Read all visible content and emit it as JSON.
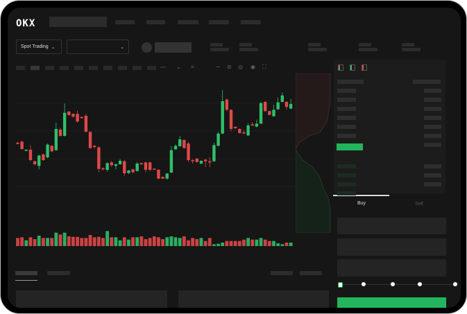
{
  "brand": {
    "logo": "OKX"
  },
  "market_selector": {
    "label": "Spot Trading",
    "value": ""
  },
  "order_form": {
    "tabs": [
      {
        "label": "Buy",
        "active": true
      },
      {
        "label": "Sell",
        "active": false
      }
    ],
    "leverage_slider": {
      "value": 0,
      "steps": 5
    },
    "buy_color": "#22b55e"
  },
  "colors": {
    "up": "#2fbf6a",
    "down": "#e04848",
    "background": "#161616"
  },
  "toolbar_icons": [
    "indicator-icon",
    "chart-type-icon",
    "drawing-icon",
    "pen-icon",
    "camera-icon",
    "settings-icon",
    "fullscreen-icon"
  ],
  "orderbook_icons": [
    "book-both-icon",
    "book-bids-icon",
    "book-asks-icon"
  ],
  "chart_data": {
    "type": "candlestick",
    "title": "",
    "xlabel": "",
    "ylabel": "",
    "ohlc": [
      [
        255,
        250,
        262,
        260
      ],
      [
        250,
        246,
        285,
        282
      ],
      [
        290,
        283,
        291,
        285
      ],
      [
        285,
        265,
        335,
        330
      ],
      [
        335,
        332,
        352,
        348
      ],
      [
        355,
        308,
        370,
        310
      ],
      [
        305,
        302,
        333,
        330
      ],
      [
        318,
        258,
        322,
        263
      ],
      [
        268,
        265,
        297,
        292
      ],
      [
        287,
        168,
        290,
        195
      ],
      [
        198,
        190,
        228,
        225
      ],
      [
        225,
        85,
        228,
        125
      ],
      [
        120,
        117,
        137,
        135
      ],
      [
        130,
        127,
        146,
        142
      ],
      [
        130,
        115,
        168,
        163
      ],
      [
        143,
        141,
        150,
        148
      ],
      [
        138,
        130,
        210,
        207
      ],
      [
        208,
        205,
        280,
        278
      ],
      [
        268,
        265,
        280,
        273
      ],
      [
        275,
        270,
        382,
        368
      ],
      [
        365,
        362,
        375,
        370
      ],
      [
        372,
        340,
        380,
        343
      ],
      [
        340,
        333,
        360,
        352
      ],
      [
        355,
        345,
        370,
        348
      ],
      [
        348,
        325,
        350,
        333
      ],
      [
        335,
        330,
        398,
        387
      ],
      [
        386,
        372,
        390,
        375
      ],
      [
        370,
        367,
        388,
        382
      ],
      [
        377,
        338,
        380,
        345
      ],
      [
        343,
        341,
        350,
        348
      ],
      [
        340,
        337,
        382,
        372
      ],
      [
        340,
        336,
        378,
        372
      ],
      [
        367,
        365,
        372,
        370
      ],
      [
        372,
        369,
        412,
        410
      ],
      [
        403,
        400,
        412,
        410
      ],
      [
        410,
        386,
        414,
        388
      ],
      [
        384,
        270,
        386,
        287
      ],
      [
        283,
        262,
        285,
        268
      ],
      [
        270,
        225,
        272,
        240
      ],
      [
        243,
        240,
        280,
        278
      ],
      [
        258,
        250,
        338,
        330
      ],
      [
        330,
        326,
        345,
        333
      ],
      [
        323,
        322,
        340,
        338
      ],
      [
        345,
        331,
        347,
        333
      ],
      [
        328,
        325,
        360,
        335
      ],
      [
        335,
        318,
        360,
        340
      ],
      [
        335,
        255,
        338,
        265
      ],
      [
        268,
        208,
        270,
        215
      ],
      [
        215,
        27,
        218,
        75
      ],
      [
        68,
        63,
        118,
        112
      ],
      [
        112,
        110,
        205,
        195
      ],
      [
        186,
        184,
        195,
        192
      ],
      [
        195,
        193,
        215,
        213
      ],
      [
        210,
        200,
        217,
        215
      ],
      [
        223,
        170,
        225,
        180
      ],
      [
        175,
        165,
        182,
        180
      ],
      [
        185,
        155,
        187,
        172
      ],
      [
        172,
        80,
        174,
        83
      ],
      [
        78,
        75,
        120,
        118
      ],
      [
        118,
        116,
        136,
        134
      ],
      [
        140,
        90,
        142,
        112
      ],
      [
        110,
        58,
        112,
        80
      ],
      [
        78,
        37,
        80,
        50
      ],
      [
        78,
        75,
        112,
        100
      ],
      [
        107,
        65,
        109,
        87
      ]
    ],
    "volume": [
      35,
      38,
      25,
      38,
      30,
      45,
      35,
      35,
      35,
      58,
      50,
      58,
      42,
      40,
      40,
      35,
      35,
      48,
      38,
      40,
      35,
      65,
      38,
      38,
      25,
      38,
      28,
      38,
      38,
      42,
      30,
      35,
      42,
      38,
      30,
      38,
      42,
      38,
      35,
      42,
      25,
      35,
      30,
      35,
      22,
      35,
      8,
      10,
      15,
      22,
      22,
      22,
      22,
      28,
      35,
      28,
      28,
      35,
      28,
      22,
      22,
      12,
      8,
      15,
      15
    ]
  }
}
